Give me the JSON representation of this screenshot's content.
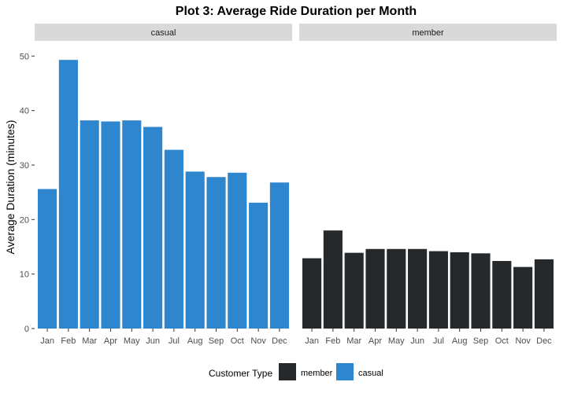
{
  "chart_data": {
    "type": "bar",
    "title": "Plot 3: Average Ride Duration per Month",
    "xlabel": "",
    "ylabel": "Average Duration (minutes)",
    "ylim": [
      0,
      52.5
    ],
    "yticks": [
      0,
      10,
      20,
      30,
      40,
      50
    ],
    "grid": false,
    "legend_position": "bottom",
    "legend_title": "Customer Type",
    "legend": [
      {
        "name": "member",
        "color": "#25292c"
      },
      {
        "name": "casual",
        "color": "#2e86cf"
      }
    ],
    "categories": [
      "Jan",
      "Feb",
      "Mar",
      "Apr",
      "May",
      "Jun",
      "Jul",
      "Aug",
      "Sep",
      "Oct",
      "Nov",
      "Dec"
    ],
    "facets": [
      {
        "name": "casual",
        "color": "#2e86cf",
        "values": [
          25.6,
          49.3,
          38.2,
          38.0,
          38.2,
          37.0,
          32.8,
          28.8,
          27.8,
          28.6,
          23.1,
          26.8
        ]
      },
      {
        "name": "member",
        "color": "#25292c",
        "values": [
          12.9,
          18.0,
          13.9,
          14.6,
          14.6,
          14.6,
          14.2,
          14.0,
          13.8,
          12.4,
          11.3,
          12.7
        ]
      }
    ]
  }
}
